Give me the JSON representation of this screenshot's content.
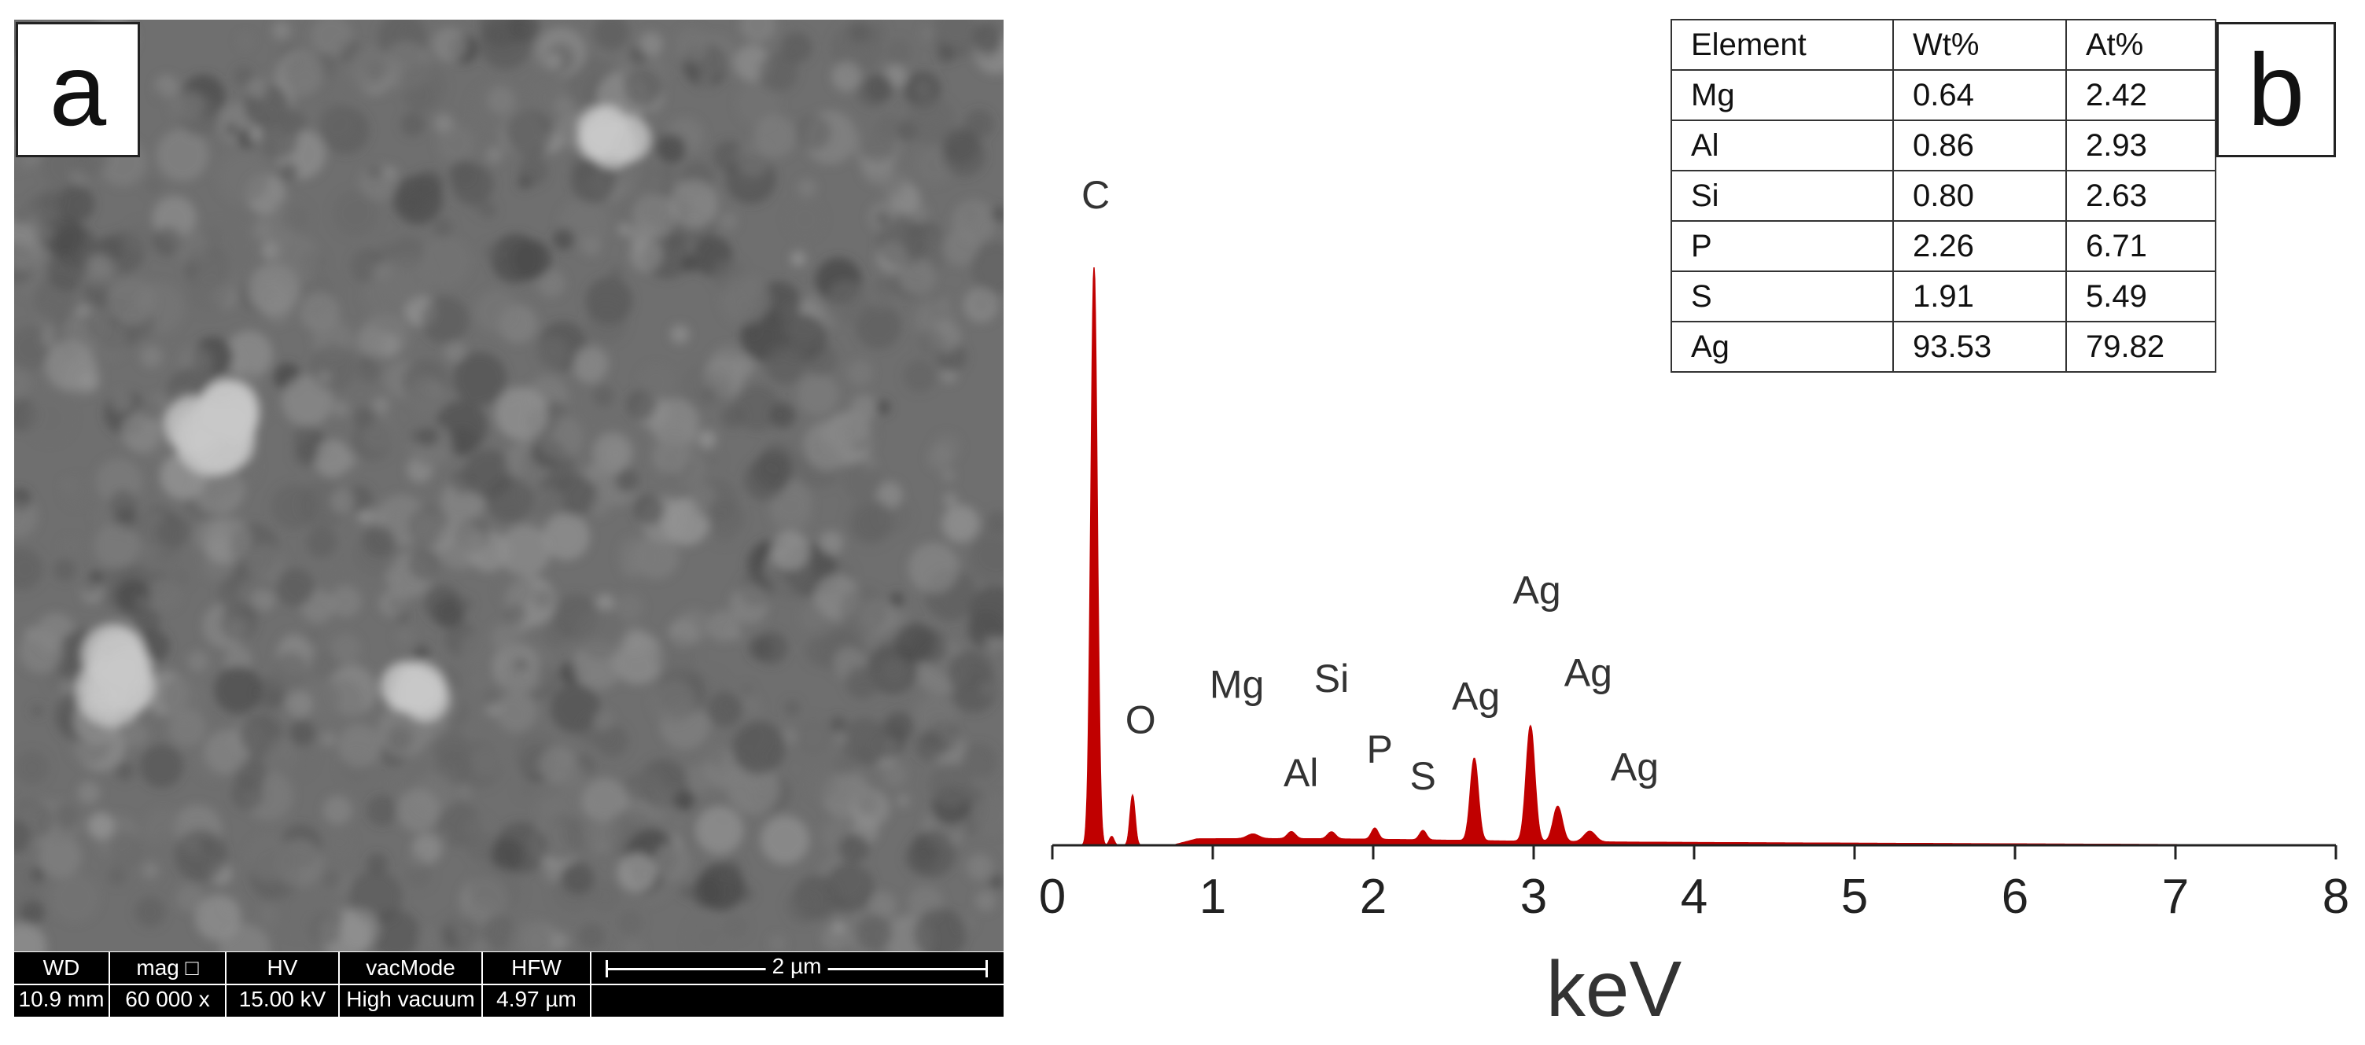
{
  "panels": {
    "a": "a",
    "b": "b"
  },
  "sem_info": {
    "columns": [
      {
        "header": "WD",
        "value": "10.9 mm"
      },
      {
        "header": "mag □",
        "value": "60 000 x"
      },
      {
        "header": "HV",
        "value": "15.00 kV"
      },
      {
        "header": "vacMode",
        "value": "High vacuum"
      },
      {
        "header": "HFW",
        "value": "4.97 µm"
      }
    ],
    "scale_label": "2 µm"
  },
  "composition_table": {
    "headers": [
      "Element",
      "Wt%",
      "At%"
    ],
    "rows": [
      [
        "Mg",
        "0.64",
        "2.42"
      ],
      [
        "Al",
        "0.86",
        "2.93"
      ],
      [
        "Si",
        "0.80",
        "2.63"
      ],
      [
        "P",
        "2.26",
        "6.71"
      ],
      [
        "S",
        "1.91",
        "5.49"
      ],
      [
        "Ag",
        "93.53",
        "79.82"
      ]
    ]
  },
  "chart_data": {
    "type": "area",
    "title": "",
    "xlabel": "keV",
    "ylabel": "",
    "xlim": [
      0,
      8
    ],
    "ylim": [
      0,
      1
    ],
    "xticks": [
      0,
      1,
      2,
      3,
      4,
      5,
      6,
      7,
      8
    ],
    "fill_color": "#c00000",
    "grid": false,
    "series": [
      {
        "peaks": [
          {
            "x": 0.26,
            "height": 0.98,
            "width": 0.028
          },
          {
            "x": 0.37,
            "height": 0.015,
            "width": 0.02
          },
          {
            "x": 0.5,
            "height": 0.085,
            "width": 0.022
          },
          {
            "x": 1.25,
            "height": 0.008,
            "width": 0.05
          },
          {
            "x": 1.49,
            "height": 0.012,
            "width": 0.035
          },
          {
            "x": 1.74,
            "height": 0.012,
            "width": 0.035
          },
          {
            "x": 2.01,
            "height": 0.019,
            "width": 0.03
          },
          {
            "x": 2.31,
            "height": 0.016,
            "width": 0.03
          },
          {
            "x": 2.63,
            "height": 0.14,
            "width": 0.035
          },
          {
            "x": 2.98,
            "height": 0.196,
            "width": 0.038
          },
          {
            "x": 3.15,
            "height": 0.06,
            "width": 0.04
          },
          {
            "x": 3.35,
            "height": 0.018,
            "width": 0.05
          }
        ]
      }
    ],
    "annotations": [
      {
        "text": "C",
        "x": 0.27,
        "y": 1.08
      },
      {
        "text": "O",
        "x": 0.55,
        "y": 0.19
      },
      {
        "text": "Mg",
        "x": 1.15,
        "y": 0.25
      },
      {
        "text": "Al",
        "x": 1.55,
        "y": 0.1
      },
      {
        "text": "Si",
        "x": 1.74,
        "y": 0.26
      },
      {
        "text": "P",
        "x": 2.04,
        "y": 0.14
      },
      {
        "text": "S",
        "x": 2.31,
        "y": 0.095
      },
      {
        "text": "Ag",
        "x": 2.64,
        "y": 0.23
      },
      {
        "text": "Ag",
        "x": 3.02,
        "y": 0.41
      },
      {
        "text": "Ag",
        "x": 3.34,
        "y": 0.27
      },
      {
        "text": "Ag",
        "x": 3.63,
        "y": 0.11
      }
    ]
  }
}
